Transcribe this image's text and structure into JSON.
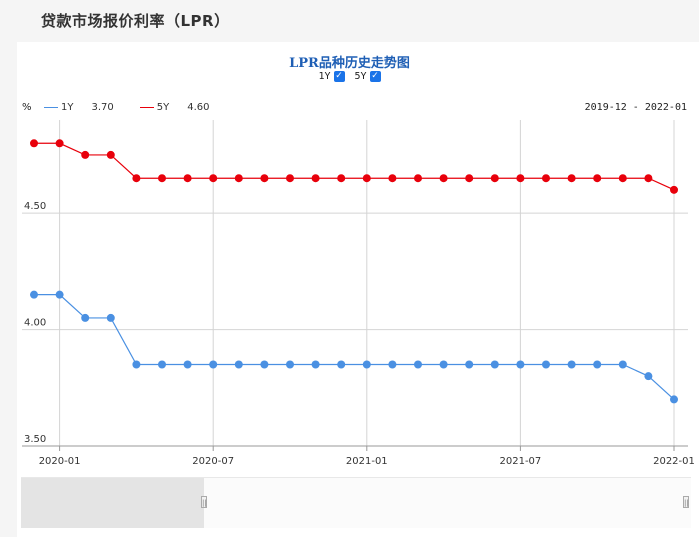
{
  "page": {
    "title": "贷款市场报价利率（LPR）"
  },
  "chart_data": {
    "type": "line",
    "title": "LPR品种历史走势图",
    "unit": "%",
    "date_range": "2019-12 - 2022-01",
    "x": [
      "2019-12",
      "2020-01",
      "2020-02",
      "2020-03",
      "2020-04",
      "2020-05",
      "2020-06",
      "2020-07",
      "2020-08",
      "2020-09",
      "2020-10",
      "2020-11",
      "2020-12",
      "2021-01",
      "2021-02",
      "2021-03",
      "2021-04",
      "2021-05",
      "2021-06",
      "2021-07",
      "2021-08",
      "2021-09",
      "2021-10",
      "2021-11",
      "2021-12",
      "2022-01"
    ],
    "x_tick_labels": [
      "2020-01",
      "2020-07",
      "2021-01",
      "2021-07",
      "2022-01"
    ],
    "y_tick_labels": [
      "3.50",
      "4.00",
      "4.50"
    ],
    "ylim": [
      3.5,
      4.9
    ],
    "grid": true,
    "series": [
      {
        "name": "1Y",
        "latest": "3.70",
        "color": "#4a90e2",
        "values": [
          4.15,
          4.15,
          4.05,
          4.05,
          3.85,
          3.85,
          3.85,
          3.85,
          3.85,
          3.85,
          3.85,
          3.85,
          3.85,
          3.85,
          3.85,
          3.85,
          3.85,
          3.85,
          3.85,
          3.85,
          3.85,
          3.85,
          3.85,
          3.85,
          3.8,
          3.7
        ]
      },
      {
        "name": "5Y",
        "latest": "4.60",
        "color": "#e8000b",
        "values": [
          4.8,
          4.8,
          4.75,
          4.75,
          4.65,
          4.65,
          4.65,
          4.65,
          4.65,
          4.65,
          4.65,
          4.65,
          4.65,
          4.65,
          4.65,
          4.65,
          4.65,
          4.65,
          4.65,
          4.65,
          4.65,
          4.65,
          4.65,
          4.65,
          4.65,
          4.6
        ]
      }
    ]
  },
  "toggles": [
    {
      "label": "1Y",
      "checked": "✓"
    },
    {
      "label": "5Y",
      "checked": "✓"
    }
  ],
  "navigator": {
    "left_handle": "||",
    "right_handle": "||"
  }
}
